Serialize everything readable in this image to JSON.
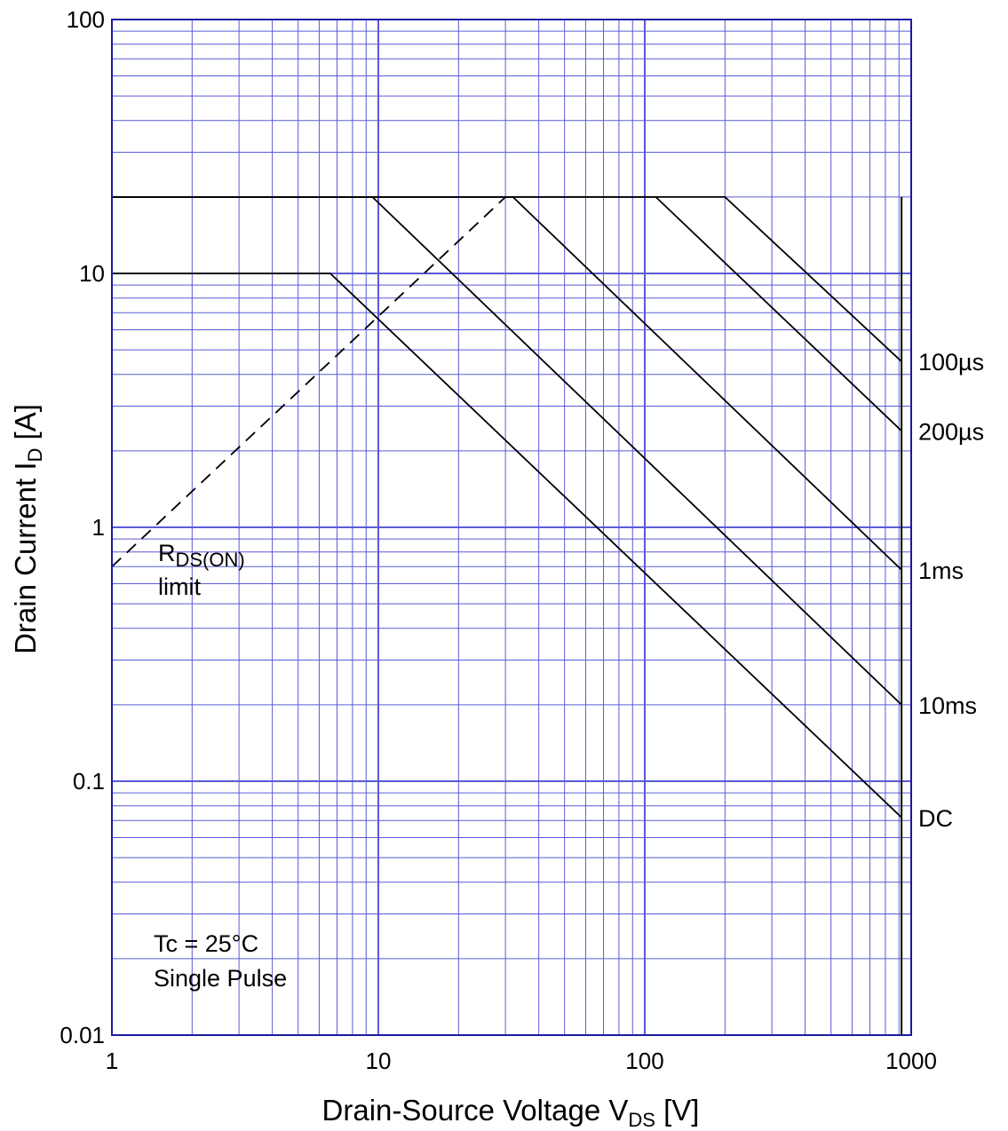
{
  "chart_data": {
    "type": "line",
    "title": "",
    "xlabel": {
      "main": "Drain-Source Voltage  V",
      "sub": "DS",
      "unit": "  [V]"
    },
    "ylabel": {
      "main": "Drain Current  I",
      "sub": "D",
      "unit": " [A]"
    },
    "x_scale": "log",
    "y_scale": "log",
    "xlim": [
      1,
      1000
    ],
    "ylim": [
      0.01,
      100
    ],
    "grid": true,
    "x_ticks": [
      "1",
      "10",
      "100",
      "1000"
    ],
    "y_ticks": [
      "0.01",
      "0.1",
      "1",
      "10",
      "100"
    ],
    "series": [
      {
        "name": "100µs",
        "dashed": false,
        "points": [
          [
            1,
            20
          ],
          [
            200,
            20
          ],
          [
            920,
            4.5
          ]
        ]
      },
      {
        "name": "200µs",
        "dashed": false,
        "points": [
          [
            1,
            20
          ],
          [
            110,
            20
          ],
          [
            920,
            2.4
          ]
        ]
      },
      {
        "name": "1ms",
        "dashed": false,
        "points": [
          [
            1,
            20
          ],
          [
            32,
            20
          ],
          [
            920,
            0.68
          ]
        ]
      },
      {
        "name": "10ms",
        "dashed": false,
        "points": [
          [
            1,
            20
          ],
          [
            9.5,
            20
          ],
          [
            920,
            0.2
          ]
        ]
      },
      {
        "name": "DC",
        "dashed": false,
        "points": [
          [
            1,
            10
          ],
          [
            6.6,
            10
          ],
          [
            920,
            0.072
          ]
        ]
      },
      {
        "name": "RDS(ON) limit",
        "dashed": true,
        "points": [
          [
            1,
            0.7
          ],
          [
            30,
            20
          ]
        ]
      }
    ],
    "vertical_limit": {
      "x": 920,
      "y_from": 0.01,
      "y_to": 20
    },
    "annotations": {
      "series_labels": [
        {
          "series": "100µs",
          "text": "100µs",
          "y": 4.5
        },
        {
          "series": "200µs",
          "text": "200µs",
          "y": 2.4
        },
        {
          "series": "1ms",
          "text": "1ms",
          "y": 0.68
        },
        {
          "series": "10ms",
          "text": "10ms",
          "y": 0.2
        },
        {
          "series": "DC",
          "text": "DC",
          "y": 0.072
        }
      ],
      "rds_label": {
        "main": "R",
        "sub": "DS(ON)",
        "line2": "limit"
      },
      "conditions": [
        "Tc = 25°C",
        "Single  Pulse"
      ]
    },
    "colors": {
      "grid": "#5a5ad8",
      "frame": "#1a1aa0",
      "curve": "#000000"
    }
  }
}
